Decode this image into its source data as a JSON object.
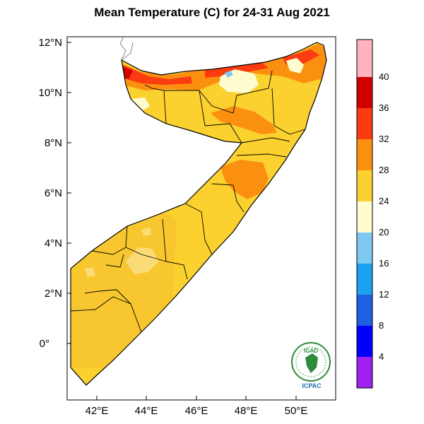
{
  "title": "Mean Temperature (C) for 24-31 Aug 2021",
  "axes": {
    "lat_ticks": [
      "12°N",
      "10°N",
      "8°N",
      "6°N",
      "4°N",
      "2°N",
      "0°"
    ],
    "lon_ticks": [
      "42°E",
      "44°E",
      "46°E",
      "48°E",
      "50°E"
    ]
  },
  "colorbar": {
    "labels": [
      "4",
      "8",
      "12",
      "16",
      "20",
      "24",
      "28",
      "32",
      "36",
      "40"
    ],
    "colors": [
      "#a020f0",
      "#0000ff",
      "#1f5fe0",
      "#1ea0f0",
      "#7fc9f0",
      "#fffdd0",
      "#fbd130",
      "#fb9010",
      "#fa3c10",
      "#d00000",
      "#ffb3c0"
    ]
  },
  "logo": {
    "top_text": "IGAD",
    "bottom_text": "ICPAC"
  }
}
